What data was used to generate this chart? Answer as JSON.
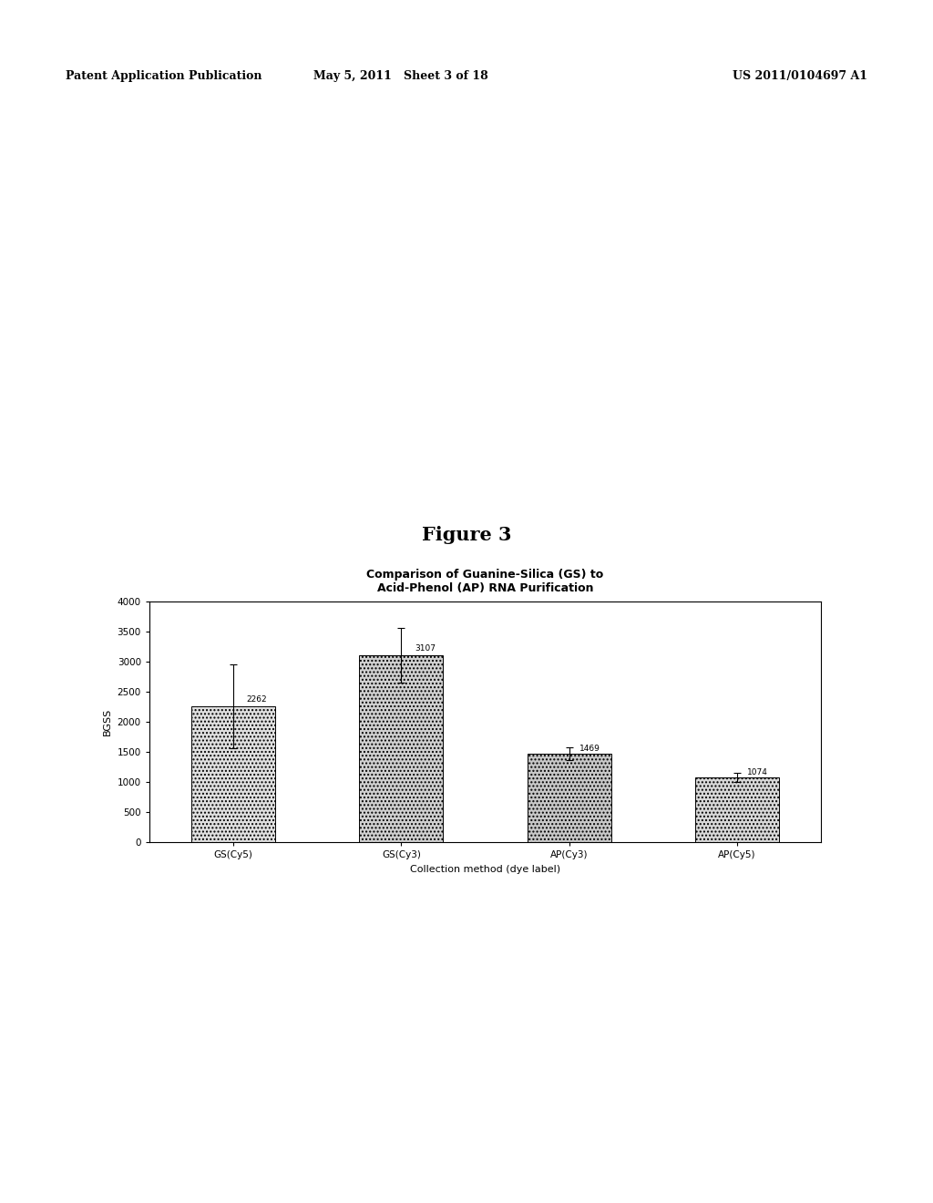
{
  "title": "Figure 3",
  "chart_title_line1": "Comparison of Guanine-Silica (GS) to",
  "chart_title_line2": "Acid-Phenol (AP) RNA Purification",
  "categories": [
    "GS(Cy5)",
    "GS(Cy3)",
    "AP(Cy3)",
    "AP(Cy5)"
  ],
  "values": [
    2262,
    3107,
    1469,
    1074
  ],
  "error_bars": [
    700,
    450,
    100,
    80
  ],
  "xlabel": "Collection method (dye label)",
  "ylabel": "BGSS",
  "ylim": [
    0,
    4000
  ],
  "yticks": [
    0,
    500,
    1000,
    1500,
    2000,
    2500,
    3000,
    3500,
    4000
  ],
  "header_left": "Patent Application Publication",
  "header_mid": "May 5, 2011   Sheet 3 of 18",
  "header_right": "US 2011/0104697 A1",
  "background_color": "#ffffff",
  "figure_label_fontsize": 15,
  "chart_title_fontsize": 9,
  "axis_label_fontsize": 8,
  "tick_label_fontsize": 7.5,
  "value_label_fontsize": 6.5,
  "header_fontsize": 9
}
